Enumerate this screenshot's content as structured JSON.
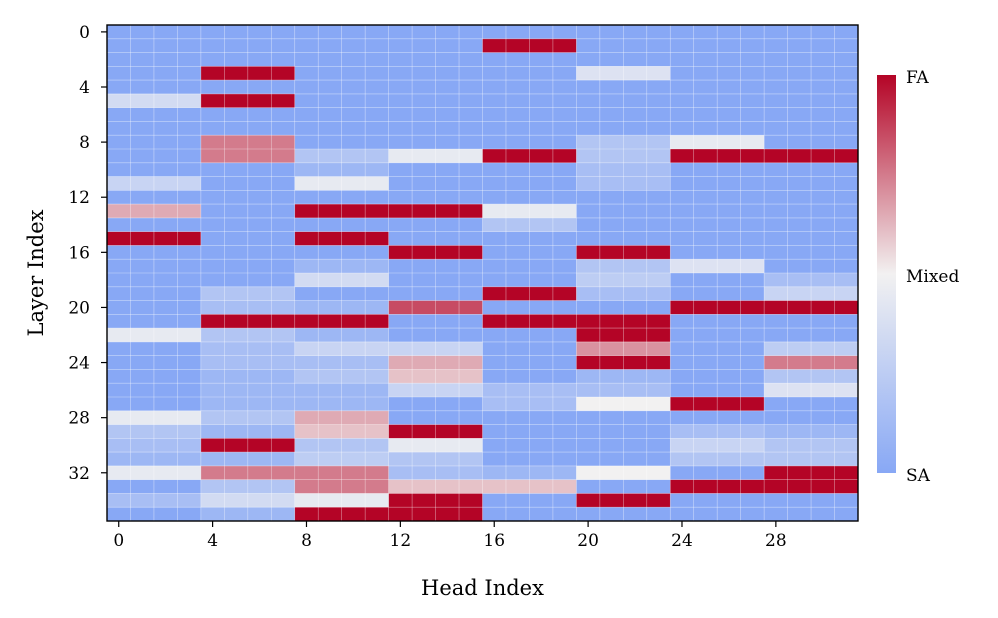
{
  "chart_data": {
    "type": "heatmap",
    "title": "",
    "xlabel": "Head Index",
    "ylabel": "Layer Index",
    "n_heads": 32,
    "n_layers": 36,
    "group_size": 4,
    "x_ticks": [
      0,
      4,
      8,
      12,
      16,
      20,
      24,
      28
    ],
    "y_ticks": [
      0,
      4,
      8,
      12,
      16,
      20,
      24,
      28,
      32
    ],
    "value_range": [
      0,
      1
    ],
    "grid": true,
    "colorbar": {
      "labels": [
        {
          "text": "FA",
          "value": 1
        },
        {
          "text": "Mixed",
          "value": 0.5
        },
        {
          "text": "SA",
          "value": 0
        }
      ],
      "colormap": "coolwarm",
      "low_color": "#88a8f5",
      "mid_color": "#f2f1f1",
      "high_color": "#b40426"
    },
    "value_meaning": "fraction of FA per head group (0 = SA, 1 = FA)",
    "values_by_head_group": [
      [
        0,
        0,
        0,
        0,
        0,
        0.35,
        0,
        0,
        0,
        0,
        0,
        0.3,
        0,
        0.65,
        0,
        1,
        0,
        0,
        0,
        0,
        0,
        0,
        0.45,
        0,
        0,
        0,
        0,
        0,
        0.45,
        0.2,
        0.15,
        0.1,
        0.45,
        0,
        0.15,
        0
      ],
      [
        0,
        0,
        0,
        1,
        0,
        1,
        0,
        0,
        0.75,
        0.75,
        0,
        0,
        0,
        0,
        0,
        0,
        0,
        0,
        0,
        0.2,
        0.15,
        1,
        0.2,
        0.15,
        0.15,
        0.1,
        0.1,
        0.1,
        0.2,
        0.1,
        1,
        0.1,
        0.75,
        0.2,
        0.35,
        0.1
      ],
      [
        0,
        0,
        0,
        0,
        0,
        0,
        0,
        0,
        0,
        0.2,
        0.1,
        0.45,
        0,
        1,
        0,
        1,
        0,
        0.1,
        0.35,
        0,
        0.1,
        1,
        0.1,
        0.3,
        0.15,
        0.2,
        0.1,
        0.1,
        0.65,
        0.6,
        0.2,
        0.25,
        0.75,
        0.75,
        0.45,
        1
      ],
      [
        0,
        0,
        0,
        0,
        0,
        0,
        0,
        0,
        0,
        0.45,
        0,
        0,
        0,
        1,
        0,
        0,
        1,
        0,
        0,
        0,
        0.85,
        0,
        0,
        0.3,
        0.65,
        0.6,
        0.3,
        0,
        0,
        1,
        0.45,
        0.2,
        0.15,
        0.6,
        1,
        1
      ],
      [
        0,
        1,
        0,
        0,
        0,
        0,
        0,
        0,
        0,
        1,
        0,
        0,
        0,
        0.45,
        0.2,
        0,
        0,
        0,
        0,
        1,
        0,
        1,
        0,
        0,
        0,
        0,
        0.15,
        0.15,
        0,
        0,
        0,
        0,
        0.1,
        0.6,
        0,
        0
      ],
      [
        0,
        0,
        0,
        0.4,
        0,
        0,
        0,
        0,
        0.2,
        0.2,
        0.15,
        0.15,
        0,
        0,
        0,
        0,
        1,
        0.2,
        0.25,
        0.15,
        0,
        1,
        1,
        0.7,
        1,
        0.1,
        0.15,
        0.5,
        0,
        0,
        0,
        0,
        0.5,
        0,
        1,
        0
      ],
      [
        0,
        0,
        0,
        0,
        0,
        0,
        0,
        0,
        0.45,
        1,
        0,
        0,
        0,
        0,
        0,
        0,
        0,
        0.4,
        0,
        0,
        1,
        0,
        0,
        0,
        0,
        0,
        0,
        1,
        0,
        0.15,
        0.3,
        0.2,
        0,
        1,
        0,
        0
      ],
      [
        0,
        0,
        0,
        0,
        0,
        0,
        0,
        0,
        0,
        1,
        0,
        0,
        0,
        0,
        0,
        0,
        0,
        0,
        0.15,
        0.3,
        1,
        0,
        0,
        0.25,
        0.75,
        0.2,
        0.4,
        0,
        0,
        0.1,
        0.2,
        0.2,
        1,
        1,
        0,
        0
      ]
    ]
  }
}
